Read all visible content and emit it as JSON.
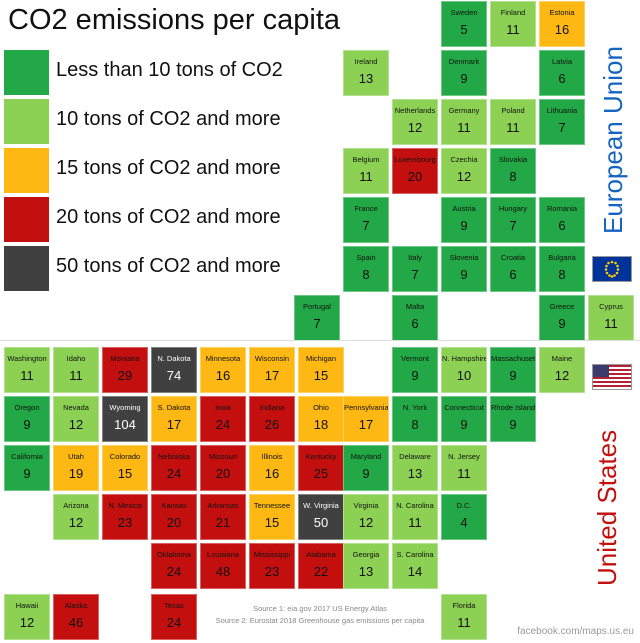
{
  "title": "CO2 emissions per capita",
  "legend": [
    {
      "label": "Less than 10 tons of CO2",
      "color": "#22a846"
    },
    {
      "label": "10 tons of CO2 and more",
      "color": "#8cd154"
    },
    {
      "label": "15 tons of CO2 and more",
      "color": "#fdb813"
    },
    {
      "label": "20 tons of CO2 and more",
      "color": "#c40f0f"
    },
    {
      "label": "50 tons of CO2 and more",
      "color": "#404040"
    }
  ],
  "eu_label": "European Union",
  "us_label": "United States",
  "source1": "Source 1: eia.gov 2017 US Energy Atlas",
  "source2": "Source 2: Eurostat 2018 Greenhouse gas emissions per capita",
  "footer": "facebook.com/maps.us.eu",
  "eu_flag_color": "#003399",
  "chart_data": {
    "type": "table",
    "unit": "tons of CO2 per capita",
    "eu": [
      {
        "name": "Sweden",
        "value": 5
      },
      {
        "name": "Finland",
        "value": 11
      },
      {
        "name": "Estonia",
        "value": 16
      },
      {
        "name": "Ireland",
        "value": 13
      },
      {
        "name": "Denmark",
        "value": 9
      },
      {
        "name": "Latvia",
        "value": 6
      },
      {
        "name": "Netherlands",
        "value": 12
      },
      {
        "name": "Germany",
        "value": 11
      },
      {
        "name": "Poland",
        "value": 11
      },
      {
        "name": "Lithuania",
        "value": 7
      },
      {
        "name": "Belgium",
        "value": 11
      },
      {
        "name": "Luxembourg",
        "value": 20
      },
      {
        "name": "Czechia",
        "value": 12
      },
      {
        "name": "Slovakia",
        "value": 8
      },
      {
        "name": "France",
        "value": 7
      },
      {
        "name": "Austria",
        "value": 9
      },
      {
        "name": "Hungary",
        "value": 7
      },
      {
        "name": "Romania",
        "value": 6
      },
      {
        "name": "Spain",
        "value": 8
      },
      {
        "name": "Italy",
        "value": 7
      },
      {
        "name": "Slovenia",
        "value": 9
      },
      {
        "name": "Croatia",
        "value": 6
      },
      {
        "name": "Bulgaria",
        "value": 8
      },
      {
        "name": "Portugal",
        "value": 7
      },
      {
        "name": "Malta",
        "value": 6
      },
      {
        "name": "Greece",
        "value": 9
      },
      {
        "name": "Cyprus",
        "value": 11
      }
    ],
    "us": [
      {
        "name": "Washington",
        "value": 11
      },
      {
        "name": "Idaho",
        "value": 11
      },
      {
        "name": "Montana",
        "value": 29
      },
      {
        "name": "N. Dakota",
        "value": 74
      },
      {
        "name": "Minnesota",
        "value": 16
      },
      {
        "name": "Wisconsin",
        "value": 17
      },
      {
        "name": "Michigan",
        "value": 15
      },
      {
        "name": "Vermont",
        "value": 9
      },
      {
        "name": "N. Hampshire",
        "value": 10
      },
      {
        "name": "Massachusetts",
        "value": 9
      },
      {
        "name": "Maine",
        "value": 12
      },
      {
        "name": "Oregon",
        "value": 9
      },
      {
        "name": "Nevada",
        "value": 12
      },
      {
        "name": "Wyoming",
        "value": 104
      },
      {
        "name": "S. Dakota",
        "value": 17
      },
      {
        "name": "Iowa",
        "value": 24
      },
      {
        "name": "Indiana",
        "value": 26
      },
      {
        "name": "Ohio",
        "value": 18
      },
      {
        "name": "Pennsylvania",
        "value": 17
      },
      {
        "name": "N. York",
        "value": 8
      },
      {
        "name": "Connecticut",
        "value": 9
      },
      {
        "name": "Rhode Island",
        "value": 9
      },
      {
        "name": "California",
        "value": 9
      },
      {
        "name": "Utah",
        "value": 19
      },
      {
        "name": "Colorado",
        "value": 15
      },
      {
        "name": "Nebraska",
        "value": 24
      },
      {
        "name": "Missouri",
        "value": 20
      },
      {
        "name": "Illinois",
        "value": 16
      },
      {
        "name": "Kentucky",
        "value": 25
      },
      {
        "name": "Maryland",
        "value": 9
      },
      {
        "name": "Delaware",
        "value": 13
      },
      {
        "name": "N. Jersey",
        "value": 11
      },
      {
        "name": "Arizona",
        "value": 12
      },
      {
        "name": "N. Mexico",
        "value": 23
      },
      {
        "name": "Kansas",
        "value": 20
      },
      {
        "name": "Arkansas",
        "value": 21
      },
      {
        "name": "Tennessee",
        "value": 15
      },
      {
        "name": "W. Virginia",
        "value": 50
      },
      {
        "name": "Virginia",
        "value": 12
      },
      {
        "name": "N. Carolina",
        "value": 11
      },
      {
        "name": "D.C.",
        "value": 4
      },
      {
        "name": "Oklahoma",
        "value": 24
      },
      {
        "name": "Louisiana",
        "value": 48
      },
      {
        "name": "Mississippi",
        "value": 23
      },
      {
        "name": "Alabama",
        "value": 22
      },
      {
        "name": "Georgia",
        "value": 13
      },
      {
        "name": "S. Carolina",
        "value": 14
      },
      {
        "name": "Hawaii",
        "value": 12
      },
      {
        "name": "Alaska",
        "value": 46
      },
      {
        "name": "Texas",
        "value": 24
      },
      {
        "name": "Florida",
        "value": 11
      }
    ]
  }
}
